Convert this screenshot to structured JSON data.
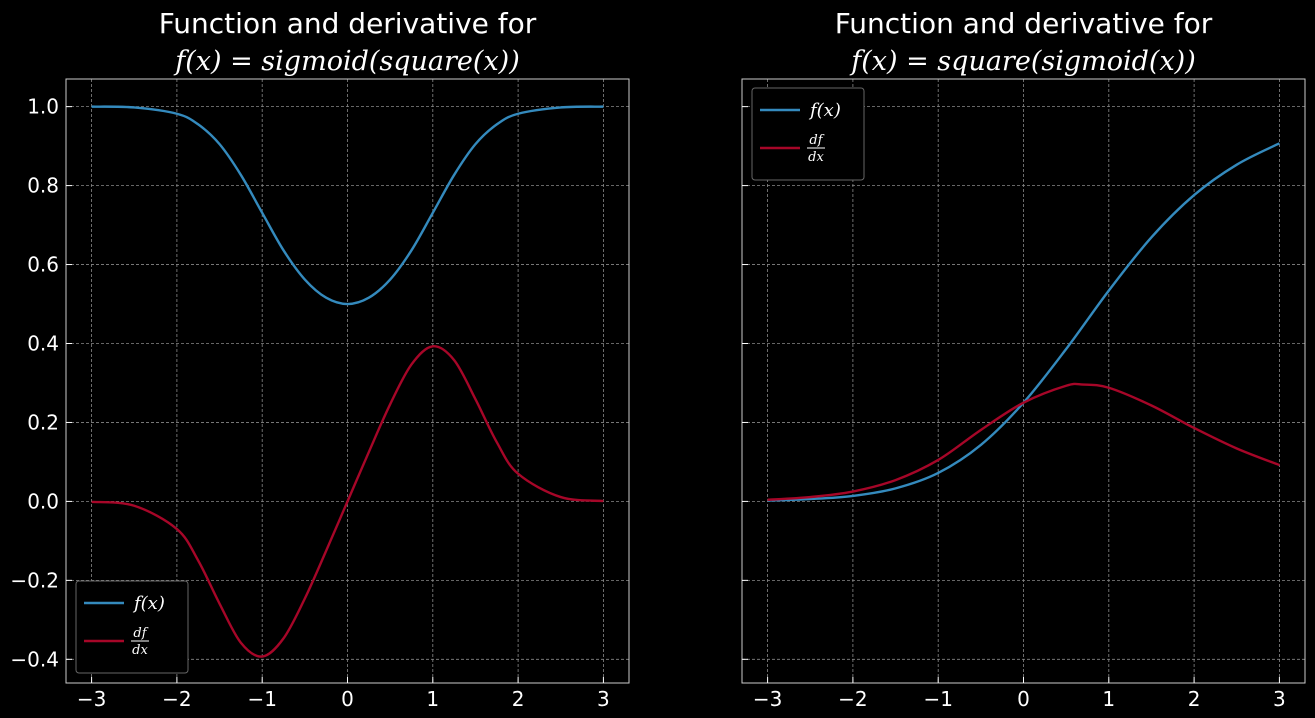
{
  "colors": {
    "background": "#000000",
    "f_line": "#348ABD",
    "df_line": "#A60628",
    "text": "#ffffff"
  },
  "chart_data": [
    {
      "type": "line",
      "title": "Function and derivative for",
      "subtitle": "f(x) = sigmoid(square(x))",
      "xlim": [
        -3.3,
        3.3
      ],
      "ylim": [
        -0.46,
        1.07
      ],
      "x_ticks": [
        "−3",
        "−2",
        "−1",
        "0",
        "1",
        "2",
        "3"
      ],
      "y_ticks": [
        "−0.4",
        "−0.2",
        "0.0",
        "0.2",
        "0.4",
        "0.6",
        "0.8",
        "1.0"
      ],
      "legend_position": "lower-left",
      "grid": true,
      "series": [
        {
          "name": "f(x)",
          "color": "#348ABD",
          "x": [
            -3,
            -2.5,
            -2,
            -1.75,
            -1.5,
            -1.25,
            -1,
            -0.75,
            -0.5,
            -0.25,
            0,
            0.25,
            0.5,
            0.75,
            1,
            1.25,
            1.5,
            1.75,
            2,
            2.5,
            3
          ],
          "y": [
            1.0,
            0.998,
            0.982,
            0.955,
            0.905,
            0.827,
            0.731,
            0.636,
            0.562,
            0.516,
            0.5,
            0.516,
            0.562,
            0.636,
            0.731,
            0.827,
            0.905,
            0.955,
            0.982,
            0.998,
            1.0
          ]
        },
        {
          "name": "df/dx",
          "color": "#A60628",
          "x": [
            -3,
            -2.5,
            -2,
            -1.75,
            -1.5,
            -1.25,
            -1,
            -0.75,
            -0.5,
            -0.25,
            0,
            0.25,
            0.5,
            0.75,
            1,
            1.25,
            1.5,
            1.75,
            2,
            2.5,
            3
          ],
          "y": [
            -0.001,
            -0.011,
            -0.07,
            -0.15,
            -0.259,
            -0.358,
            -0.393,
            -0.347,
            -0.246,
            -0.125,
            0.0,
            0.125,
            0.246,
            0.347,
            0.393,
            0.358,
            0.259,
            0.15,
            0.07,
            0.011,
            0.001
          ]
        }
      ]
    },
    {
      "type": "line",
      "title": "Function and derivative for",
      "subtitle": "f(x) = square(sigmoid(x))",
      "xlim": [
        -3.3,
        3.3
      ],
      "ylim": [
        -0.46,
        1.07
      ],
      "x_ticks": [
        "−3",
        "−2",
        "−1",
        "0",
        "1",
        "2",
        "3"
      ],
      "y_ticks": [],
      "legend_position": "upper-left",
      "grid": true,
      "series": [
        {
          "name": "f(x)",
          "color": "#348ABD",
          "x": [
            -3,
            -2.5,
            -2,
            -1.5,
            -1,
            -0.5,
            0,
            0.5,
            1,
            1.5,
            2,
            2.5,
            3
          ],
          "y": [
            0.002,
            0.006,
            0.014,
            0.033,
            0.072,
            0.143,
            0.25,
            0.386,
            0.534,
            0.669,
            0.776,
            0.853,
            0.907
          ]
        },
        {
          "name": "df/dx",
          "color": "#A60628",
          "x": [
            -3,
            -2.5,
            -2,
            -1.5,
            -1,
            -0.5,
            0,
            0.5,
            0.7,
            1,
            1.5,
            2,
            2.5,
            3
          ],
          "y": [
            0.004,
            0.011,
            0.025,
            0.054,
            0.105,
            0.181,
            0.25,
            0.293,
            0.296,
            0.288,
            0.243,
            0.186,
            0.134,
            0.092
          ]
        }
      ]
    }
  ]
}
